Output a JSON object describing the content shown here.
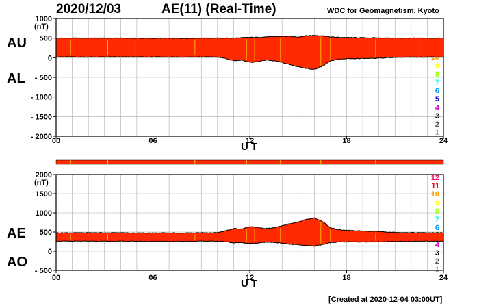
{
  "header": {
    "date": "2020/12/03",
    "title": "AE(11) (Real-Time)",
    "source": "WDC for Geomagnetism, Kyoto"
  },
  "footer": {
    "created": "[Created at 2020-12-04 03:00UT]"
  },
  "colors": {
    "fill": "#ff2a00",
    "stripe": "#ffd400",
    "outline": "#000000",
    "grid": "#aaaaaa"
  },
  "legend": [
    {
      "label": "12",
      "color": "#ff0066"
    },
    {
      "label": "11",
      "color": "#ff0000"
    },
    {
      "label": "10",
      "color": "#ff9900"
    },
    {
      "label": "9",
      "color": "#ffff00"
    },
    {
      "label": "8",
      "color": "#99ff00"
    },
    {
      "label": "7",
      "color": "#00ffff"
    },
    {
      "label": "6",
      "color": "#0099ff"
    },
    {
      "label": "5",
      "color": "#0000cc"
    },
    {
      "label": "4",
      "color": "#cc00cc"
    },
    {
      "label": "3",
      "color": "#000000"
    },
    {
      "label": "2",
      "color": "#555555"
    },
    {
      "label": "1",
      "color": "#aaaaaa"
    }
  ],
  "chart_data": [
    {
      "type": "area",
      "panel": "AU/AL",
      "label_upper": "AU",
      "label_lower": "AL",
      "unit": "(nT)",
      "xlabel": "U T",
      "xlim": [
        0,
        24
      ],
      "ylim": [
        -2000,
        1000
      ],
      "xticks": [
        "00",
        "06",
        "12",
        "18",
        "24"
      ],
      "yticks": [
        "1000",
        "500",
        "0",
        "- 500",
        "- 1000",
        "- 1500",
        "- 2000"
      ],
      "ytick_values": [
        1000,
        500,
        0,
        -500,
        -1000,
        -1500,
        -2000
      ],
      "grid": true,
      "series": [
        {
          "name": "AU",
          "x": [
            0,
            1,
            2,
            3,
            4,
            5,
            6,
            7,
            8,
            9,
            10,
            11,
            11.5,
            12,
            12.5,
            13,
            13.5,
            14,
            14.5,
            15,
            15.5,
            16,
            16.5,
            17,
            17.5,
            18,
            19,
            20,
            21,
            22,
            23,
            24
          ],
          "values": [
            500,
            500,
            500,
            500,
            500,
            495,
            495,
            495,
            495,
            500,
            500,
            500,
            510,
            520,
            520,
            530,
            535,
            545,
            540,
            530,
            560,
            570,
            560,
            530,
            520,
            515,
            510,
            505,
            500,
            500,
            500,
            500
          ]
        },
        {
          "name": "AL",
          "x": [
            0,
            1,
            2,
            3,
            4,
            5,
            6,
            7,
            8,
            9,
            10,
            10.5,
            11,
            11.5,
            12,
            12.5,
            13,
            13.5,
            14,
            14.5,
            15,
            15.5,
            16,
            16.5,
            17,
            17.5,
            18,
            19,
            20,
            21,
            22,
            23,
            24
          ],
          "values": [
            20,
            20,
            20,
            20,
            20,
            20,
            20,
            20,
            20,
            20,
            20,
            -20,
            -80,
            -60,
            -120,
            -100,
            -60,
            -80,
            -120,
            -180,
            -230,
            -270,
            -300,
            -220,
            -80,
            -40,
            -30,
            -20,
            -10,
            10,
            15,
            20,
            20
          ]
        }
      ]
    },
    {
      "type": "area",
      "panel": "AE/AO",
      "label_upper": "AE",
      "label_lower": "AO",
      "unit": "(nT)",
      "xlabel": "U T",
      "xlim": [
        0,
        24
      ],
      "ylim": [
        -500,
        2000
      ],
      "xticks": [
        "00",
        "06",
        "12",
        "18",
        "24"
      ],
      "yticks": [
        "2000",
        "1500",
        "1000",
        "500",
        "0",
        "- 500"
      ],
      "ytick_values": [
        2000,
        1500,
        1000,
        500,
        0,
        -500
      ],
      "grid": true,
      "series": [
        {
          "name": "AE",
          "x": [
            0,
            1,
            2,
            3,
            4,
            5,
            6,
            7,
            8,
            9,
            10,
            10.5,
            11,
            11.5,
            12,
            12.5,
            13,
            13.5,
            14,
            14.5,
            15,
            15.5,
            16,
            16.5,
            17,
            17.5,
            18,
            19,
            20,
            21,
            22,
            23,
            24
          ],
          "values": [
            480,
            480,
            480,
            480,
            480,
            475,
            475,
            475,
            475,
            480,
            480,
            530,
            590,
            580,
            640,
            620,
            590,
            610,
            660,
            720,
            760,
            830,
            870,
            780,
            610,
            560,
            545,
            525,
            515,
            490,
            485,
            480,
            480
          ]
        },
        {
          "name": "AO",
          "x": [
            0,
            1,
            2,
            3,
            4,
            5,
            6,
            7,
            8,
            9,
            10,
            10.5,
            11,
            11.5,
            12,
            12.5,
            13,
            13.5,
            14,
            14.5,
            15,
            15.5,
            16,
            16.5,
            17,
            17.5,
            18,
            19,
            20,
            21,
            22,
            23,
            24
          ],
          "values": [
            260,
            260,
            260,
            260,
            260,
            258,
            258,
            258,
            258,
            260,
            260,
            250,
            215,
            225,
            200,
            210,
            235,
            228,
            210,
            180,
            165,
            145,
            135,
            170,
            225,
            240,
            242,
            243,
            245,
            255,
            258,
            260,
            260
          ]
        }
      ]
    }
  ]
}
